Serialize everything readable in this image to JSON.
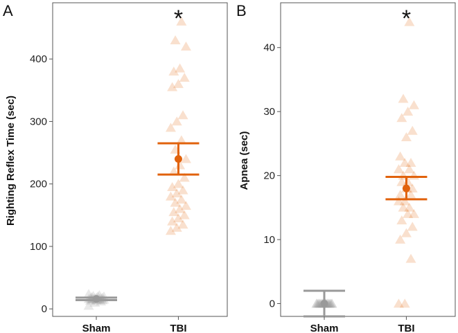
{
  "colors": {
    "sham": "#999999",
    "tbi": "#E1620C",
    "frame": "#555555",
    "text": "#111111"
  },
  "chart_data": [
    {
      "type": "scatter",
      "panel_label": "A",
      "title": "",
      "xlabel": "",
      "ylabel": "Righting Reflex Time (sec)",
      "ylim": [
        -12,
        490
      ],
      "yticks": [
        0,
        100,
        200,
        300,
        400
      ],
      "categories": [
        "Sham",
        "TBI"
      ],
      "significance": {
        "category": "TBI",
        "text": "*"
      },
      "series": [
        {
          "name": "Sham",
          "values": [
            5,
            10,
            12,
            13,
            14,
            14,
            15,
            15,
            15,
            16,
            16,
            16,
            17,
            17,
            17,
            18,
            18,
            19,
            20,
            20,
            21,
            22,
            24
          ],
          "mean": 16,
          "err_low": 14,
          "err_high": 18
        },
        {
          "name": "TBI",
          "values": [
            125,
            130,
            135,
            140,
            145,
            150,
            155,
            160,
            165,
            170,
            175,
            180,
            185,
            190,
            195,
            200,
            210,
            220,
            230,
            240,
            255,
            270,
            290,
            300,
            310,
            355,
            360,
            370,
            380,
            385,
            420,
            430,
            460
          ],
          "mean": 240,
          "err_low": 215,
          "err_high": 265
        }
      ]
    },
    {
      "type": "scatter",
      "panel_label": "B",
      "title": "",
      "xlabel": "",
      "ylabel": "Apnea (sec)",
      "ylim": [
        -2,
        47
      ],
      "yticks": [
        0,
        10,
        20,
        30,
        40
      ],
      "categories": [
        "Sham",
        "TBI"
      ],
      "significance": {
        "category": "TBI",
        "text": "*"
      },
      "series": [
        {
          "name": "Sham",
          "values": [
            0,
            0,
            0,
            0,
            0,
            0,
            0,
            0,
            0,
            0,
            0,
            0,
            0,
            0,
            0,
            0,
            0,
            0,
            0,
            0,
            0,
            0
          ],
          "mean": 0,
          "err_low": -2,
          "err_high": 2
        },
        {
          "name": "TBI",
          "values": [
            0,
            0,
            7,
            10,
            11,
            12,
            13,
            14,
            14,
            15,
            15,
            16,
            16,
            17,
            17,
            18,
            18,
            19,
            19,
            20,
            20,
            21,
            21,
            22,
            22,
            23,
            26,
            27,
            29,
            30,
            31,
            32,
            44
          ],
          "mean": 18,
          "err_low": 16.3,
          "err_high": 19.8
        }
      ]
    }
  ]
}
